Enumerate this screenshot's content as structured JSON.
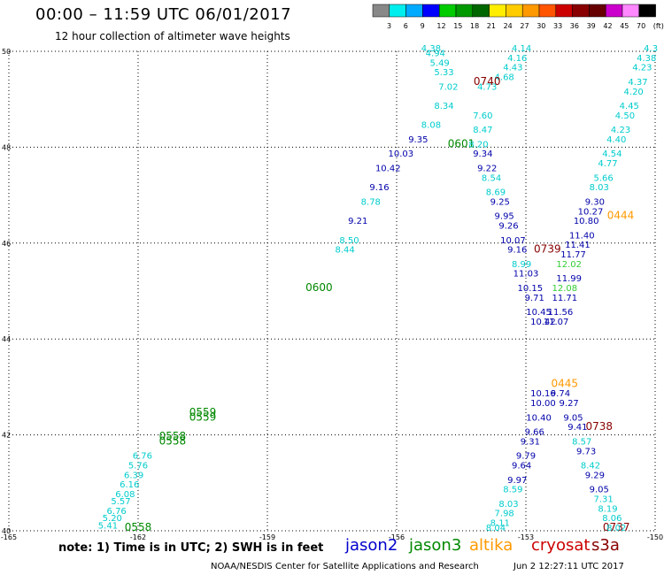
{
  "title": "00:00 – 11:59 UTC 06/01/2017",
  "subtitle": "12 hour collection of altimeter wave heights",
  "note": "note: 1) Time is in UTC; 2) SWH is in feet",
  "credit": "NOAA/NESDIS Center for Satellite Applications and Research",
  "timestamp": "Jun  2 12:27:11 UTC 2017",
  "satellites": [
    {
      "name": "jason2",
      "color": "#0000cc"
    },
    {
      "name": "jason3",
      "color": "#008800"
    },
    {
      "name": "altika",
      "color": "#ff9900"
    },
    {
      "name": "cryosat",
      "color": "#cc0000"
    },
    {
      "name": "s3a",
      "color": "#880000"
    }
  ],
  "colorbar": {
    "labels": [
      "3",
      "6",
      "9",
      "12",
      "15",
      "18",
      "21",
      "24",
      "27",
      "30",
      "33",
      "36",
      "39",
      "42",
      "45",
      "70",
      "(ft)"
    ],
    "colors": [
      "#888888",
      "#00eeee",
      "#00aaff",
      "#0000ff",
      "#00cc00",
      "#009900",
      "#006600",
      "#ffee00",
      "#ffcc00",
      "#ff9900",
      "#ff5500",
      "#cc0000",
      "#880000",
      "#660000",
      "#cc00cc",
      "#ff88ff",
      "#000000"
    ]
  },
  "chart_data": {
    "type": "scatter",
    "xlim": [
      -165,
      -150
    ],
    "ylim": [
      40,
      50
    ],
    "xticks": [
      "-165",
      "-162",
      "-159",
      "-156",
      "-153",
      "-150"
    ],
    "yticks": [
      "40",
      "42",
      "44",
      "46",
      "48",
      "50"
    ],
    "grid": true,
    "tracks": [
      {
        "id": "track-a",
        "times": [
          {
            "label": "0558",
            "x": -161.2,
            "y": 41.8,
            "color": "#008800"
          },
          {
            "label": "0558",
            "x": -161.2,
            "y": 41.9,
            "color": "#008800"
          },
          {
            "label": "0559",
            "x": -160.5,
            "y": 42.4,
            "color": "#008800"
          },
          {
            "label": "0559",
            "x": -160.5,
            "y": 42.3,
            "color": "#008800"
          },
          {
            "label": "0600",
            "x": -157.8,
            "y": 45.0,
            "color": "#008800"
          },
          {
            "label": "0601",
            "x": -154.5,
            "y": 48.0,
            "color": "#008800"
          },
          {
            "label": "0558",
            "x": -162.0,
            "y": 40.0,
            "color": "#008800"
          }
        ],
        "points": [
          {
            "x": -162.7,
            "y": 40.05,
            "v": "5.41",
            "c": "#00cccc"
          },
          {
            "x": -162.6,
            "y": 40.2,
            "v": "5.20",
            "c": "#00cccc"
          },
          {
            "x": -162.5,
            "y": 40.35,
            "v": "6.76",
            "c": "#00cccc"
          },
          {
            "x": -162.4,
            "y": 40.55,
            "v": "5.57",
            "c": "#00cccc"
          },
          {
            "x": -162.3,
            "y": 40.7,
            "v": "6.08",
            "c": "#00cccc"
          },
          {
            "x": -162.2,
            "y": 40.9,
            "v": "6.16",
            "c": "#00cccc"
          },
          {
            "x": -162.1,
            "y": 41.1,
            "v": "6.39",
            "c": "#00cccc"
          },
          {
            "x": -162.0,
            "y": 41.3,
            "v": "5.76",
            "c": "#00cccc"
          },
          {
            "x": -161.9,
            "y": 41.5,
            "v": "6.76",
            "c": "#00cccc"
          },
          {
            "x": -157.2,
            "y": 45.8,
            "v": "8.44",
            "c": "#00cccc"
          },
          {
            "x": -157.1,
            "y": 46.0,
            "v": "8.50",
            "c": "#00cccc"
          },
          {
            "x": -156.9,
            "y": 46.4,
            "v": "9.21",
            "c": "#0000aa"
          },
          {
            "x": -156.6,
            "y": 46.8,
            "v": "8.78",
            "c": "#00cccc"
          },
          {
            "x": -156.4,
            "y": 47.1,
            "v": "9.16",
            "c": "#0000aa"
          },
          {
            "x": -156.2,
            "y": 47.5,
            "v": "10.42",
            "c": "#0000aa"
          },
          {
            "x": -155.9,
            "y": 47.8,
            "v": "10.03",
            "c": "#0000aa"
          },
          {
            "x": -155.5,
            "y": 48.1,
            "v": "9.35",
            "c": "#0000aa"
          },
          {
            "x": -155.2,
            "y": 48.4,
            "v": "8.08",
            "c": "#00cccc"
          },
          {
            "x": -154.9,
            "y": 48.8,
            "v": "8.34",
            "c": "#00cccc"
          },
          {
            "x": -154.8,
            "y": 49.2,
            "v": "7.02",
            "c": "#00cccc"
          },
          {
            "x": -154.9,
            "y": 49.5,
            "v": "5.33",
            "c": "#00cccc"
          },
          {
            "x": -155.0,
            "y": 49.7,
            "v": "5.49",
            "c": "#00cccc"
          },
          {
            "x": -155.1,
            "y": 49.9,
            "v": "4.94",
            "c": "#00cccc"
          },
          {
            "x": -155.2,
            "y": 50.0,
            "v": "4.38",
            "c": "#00cccc"
          }
        ]
      },
      {
        "id": "track-b",
        "times": [
          {
            "label": "0740",
            "x": -153.9,
            "y": 49.3,
            "color": "#880000"
          },
          {
            "label": "0739",
            "x": -152.5,
            "y": 45.8,
            "color": "#880000"
          },
          {
            "label": "0738",
            "x": -151.3,
            "y": 42.1,
            "color": "#880000"
          },
          {
            "label": "0737",
            "x": -150.9,
            "y": 40.0,
            "color": "#880000"
          }
        ],
        "points": [
          {
            "x": -153.1,
            "y": 50.0,
            "v": "4.14",
            "c": "#00cccc"
          },
          {
            "x": -153.2,
            "y": 49.8,
            "v": "4.16",
            "c": "#00cccc"
          },
          {
            "x": -153.3,
            "y": 49.6,
            "v": "4.43",
            "c": "#00cccc"
          },
          {
            "x": -153.5,
            "y": 49.4,
            "v": "4.68",
            "c": "#00cccc"
          },
          {
            "x": -153.9,
            "y": 49.2,
            "v": "4.73",
            "c": "#00cccc"
          },
          {
            "x": -154.0,
            "y": 48.6,
            "v": "7.60",
            "c": "#00cccc"
          },
          {
            "x": -154.0,
            "y": 48.3,
            "v": "8.47",
            "c": "#00cccc"
          },
          {
            "x": -154.1,
            "y": 48.0,
            "v": "8.20",
            "c": "#00cccc"
          },
          {
            "x": -154.0,
            "y": 47.8,
            "v": "9.34",
            "c": "#0000aa"
          },
          {
            "x": -153.9,
            "y": 47.5,
            "v": "9.22",
            "c": "#0000aa"
          },
          {
            "x": -153.8,
            "y": 47.3,
            "v": "8.54",
            "c": "#00cccc"
          },
          {
            "x": -153.7,
            "y": 47.0,
            "v": "8.69",
            "c": "#00cccc"
          },
          {
            "x": -153.6,
            "y": 46.8,
            "v": "9.25",
            "c": "#0000aa"
          },
          {
            "x": -153.5,
            "y": 46.5,
            "v": "9.95",
            "c": "#0000aa"
          },
          {
            "x": -153.4,
            "y": 46.3,
            "v": "9.26",
            "c": "#0000aa"
          },
          {
            "x": -153.3,
            "y": 46.0,
            "v": "10.07",
            "c": "#0000aa"
          },
          {
            "x": -153.2,
            "y": 45.8,
            "v": "9.16",
            "c": "#0000aa"
          },
          {
            "x": -153.1,
            "y": 45.5,
            "v": "8.99",
            "c": "#00cccc"
          },
          {
            "x": -153.0,
            "y": 45.3,
            "v": "11.03",
            "c": "#0000aa"
          },
          {
            "x": -152.9,
            "y": 45.0,
            "v": "10.15",
            "c": "#0000aa"
          },
          {
            "x": -152.8,
            "y": 44.8,
            "v": "9.71",
            "c": "#0000aa"
          },
          {
            "x": -152.7,
            "y": 44.5,
            "v": "10.45",
            "c": "#0000aa"
          },
          {
            "x": -152.6,
            "y": 44.3,
            "v": "10.42",
            "c": "#0000aa"
          },
          {
            "x": -152.6,
            "y": 42.8,
            "v": "10.16",
            "c": "#0000aa"
          },
          {
            "x": -152.6,
            "y": 42.6,
            "v": "10.00",
            "c": "#0000aa"
          },
          {
            "x": -152.7,
            "y": 42.3,
            "v": "10.40",
            "c": "#0000aa"
          },
          {
            "x": -152.8,
            "y": 42.0,
            "v": "9.66",
            "c": "#0000aa"
          },
          {
            "x": -152.9,
            "y": 41.8,
            "v": "9.31",
            "c": "#0000aa"
          },
          {
            "x": -153.0,
            "y": 41.5,
            "v": "9.79",
            "c": "#0000aa"
          },
          {
            "x": -153.1,
            "y": 41.3,
            "v": "9.64",
            "c": "#0000aa"
          },
          {
            "x": -153.2,
            "y": 41.0,
            "v": "9.97",
            "c": "#0000aa"
          },
          {
            "x": -153.3,
            "y": 40.8,
            "v": "8.59",
            "c": "#00cccc"
          },
          {
            "x": -153.4,
            "y": 40.5,
            "v": "8.03",
            "c": "#00cccc"
          },
          {
            "x": -153.5,
            "y": 40.3,
            "v": "7.98",
            "c": "#00cccc"
          },
          {
            "x": -153.6,
            "y": 40.1,
            "v": "8.11",
            "c": "#00cccc"
          },
          {
            "x": -153.7,
            "y": 40.0,
            "v": "8.04",
            "c": "#00cccc"
          }
        ]
      },
      {
        "id": "track-c",
        "times": [
          {
            "label": "0444",
            "x": -150.8,
            "y": 46.5,
            "color": "#ff9900"
          },
          {
            "label": "0445",
            "x": -152.1,
            "y": 43.0,
            "color": "#ff9900"
          }
        ],
        "points": [
          {
            "x": -150.1,
            "y": 50.0,
            "v": "4.3",
            "c": "#00cccc"
          },
          {
            "x": -150.2,
            "y": 49.8,
            "v": "4.38",
            "c": "#00cccc"
          },
          {
            "x": -150.3,
            "y": 49.6,
            "v": "4.23",
            "c": "#00cccc"
          },
          {
            "x": -150.4,
            "y": 49.3,
            "v": "4.37",
            "c": "#00cccc"
          },
          {
            "x": -150.5,
            "y": 49.1,
            "v": "4.20",
            "c": "#00cccc"
          },
          {
            "x": -150.6,
            "y": 48.8,
            "v": "4.45",
            "c": "#00cccc"
          },
          {
            "x": -150.7,
            "y": 48.6,
            "v": "4.50",
            "c": "#00cccc"
          },
          {
            "x": -150.8,
            "y": 48.3,
            "v": "4.23",
            "c": "#00cccc"
          },
          {
            "x": -150.9,
            "y": 48.1,
            "v": "4.40",
            "c": "#00cccc"
          },
          {
            "x": -151.0,
            "y": 47.8,
            "v": "4.54",
            "c": "#00cccc"
          },
          {
            "x": -151.1,
            "y": 47.6,
            "v": "4.77",
            "c": "#00cccc"
          },
          {
            "x": -151.2,
            "y": 47.3,
            "v": "5.66",
            "c": "#00cccc"
          },
          {
            "x": -151.3,
            "y": 47.1,
            "v": "8.03",
            "c": "#00cccc"
          },
          {
            "x": -151.4,
            "y": 46.8,
            "v": "9.30",
            "c": "#0000aa"
          },
          {
            "x": -151.5,
            "y": 46.6,
            "v": "10.27",
            "c": "#0000aa"
          },
          {
            "x": -151.6,
            "y": 46.4,
            "v": "10.80",
            "c": "#0000aa"
          },
          {
            "x": -151.7,
            "y": 46.1,
            "v": "11.40",
            "c": "#0000aa"
          },
          {
            "x": -151.8,
            "y": 45.9,
            "v": "11.41",
            "c": "#0000aa"
          },
          {
            "x": -151.9,
            "y": 45.7,
            "v": "11.77",
            "c": "#0000aa"
          },
          {
            "x": -152.0,
            "y": 45.5,
            "v": "12.02",
            "c": "#33cc33"
          },
          {
            "x": -152.0,
            "y": 45.2,
            "v": "11.99",
            "c": "#0000aa"
          },
          {
            "x": -152.1,
            "y": 45.0,
            "v": "12.08",
            "c": "#33cc33"
          },
          {
            "x": -152.1,
            "y": 44.8,
            "v": "11.71",
            "c": "#0000aa"
          },
          {
            "x": -152.2,
            "y": 44.5,
            "v": "11.56",
            "c": "#0000aa"
          },
          {
            "x": -152.3,
            "y": 44.3,
            "v": "11.07",
            "c": "#0000aa"
          },
          {
            "x": -152.2,
            "y": 42.8,
            "v": "9.74",
            "c": "#0000aa"
          },
          {
            "x": -152.0,
            "y": 42.6,
            "v": "9.27",
            "c": "#0000aa"
          },
          {
            "x": -151.9,
            "y": 42.3,
            "v": "9.05",
            "c": "#0000aa"
          },
          {
            "x": -151.8,
            "y": 42.1,
            "v": "9.41",
            "c": "#0000aa"
          },
          {
            "x": -151.7,
            "y": 41.8,
            "v": "8.57",
            "c": "#00cccc"
          },
          {
            "x": -151.6,
            "y": 41.6,
            "v": "9.73",
            "c": "#0000aa"
          },
          {
            "x": -151.5,
            "y": 41.3,
            "v": "8.42",
            "c": "#00cccc"
          },
          {
            "x": -151.4,
            "y": 41.1,
            "v": "9.29",
            "c": "#0000aa"
          },
          {
            "x": -151.3,
            "y": 40.8,
            "v": "9.05",
            "c": "#0000aa"
          },
          {
            "x": -151.2,
            "y": 40.6,
            "v": "7.31",
            "c": "#00cccc"
          },
          {
            "x": -151.1,
            "y": 40.4,
            "v": "8.19",
            "c": "#00cccc"
          },
          {
            "x": -151.0,
            "y": 40.2,
            "v": "8.06",
            "c": "#00cccc"
          },
          {
            "x": -150.9,
            "y": 40.0,
            "v": "8.02",
            "c": "#00cccc"
          }
        ]
      }
    ]
  }
}
